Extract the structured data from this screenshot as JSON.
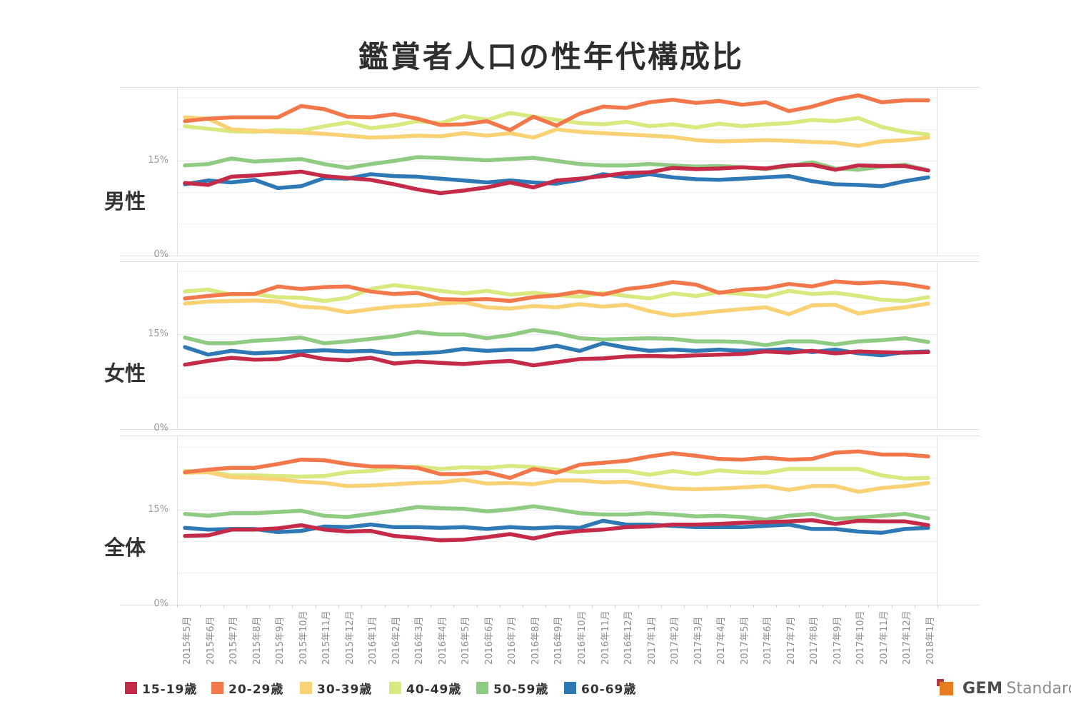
{
  "title": "鑑賞者人口の性年代構成比",
  "panels": [
    {
      "label": "男性"
    },
    {
      "label": "女性"
    },
    {
      "label": "全体"
    }
  ],
  "y_axis": {
    "tick_labels": [
      "0%",
      "15%"
    ]
  },
  "legend": {
    "items": [
      {
        "label": "15-19歳",
        "color": "#c62a49"
      },
      {
        "label": "20-29歳",
        "color": "#f2774b"
      },
      {
        "label": "30-39歳",
        "color": "#f9d276"
      },
      {
        "label": "40-49歳",
        "color": "#d9e97f"
      },
      {
        "label": "50-59歳",
        "color": "#8fcb82"
      },
      {
        "label": "60-69歳",
        "color": "#2e79b5"
      }
    ]
  },
  "logo": {
    "text_bold": "GEM",
    "text_light": "Standard",
    "orange": "#e87c21",
    "dark_red": "#b23a46"
  },
  "chart_data": {
    "type": "line",
    "grid": "horizontal, 5% steps",
    "legend_position": "bottom",
    "y_ticks_shown": [
      "0%",
      "15%"
    ],
    "ylim_per_panel": [
      0,
      26.7
    ],
    "categories": [
      "2015年5月",
      "2015年6月",
      "2015年7月",
      "2015年8月",
      "2015年9月",
      "2015年10月",
      "2015年11月",
      "2015年12月",
      "2016年1月",
      "2016年2月",
      "2016年3月",
      "2016年4月",
      "2016年5月",
      "2016年6月",
      "2016年7月",
      "2016年8月",
      "2016年9月",
      "2016年10月",
      "2016年11月",
      "2016年12月",
      "2017年1月",
      "2017年2月",
      "2017年3月",
      "2017年4月",
      "2017年5月",
      "2017年6月",
      "2017年7月",
      "2017年8月",
      "2017年9月",
      "2017年10月",
      "2017年11月",
      "2017年12月",
      "2018年1月"
    ],
    "panels": [
      {
        "name": "男性",
        "series": [
          {
            "name": "15-19歳",
            "color": "#c62a49",
            "values": [
              11.5,
              11.2,
              12.5,
              12.7,
              13.0,
              13.3,
              12.6,
              12.3,
              12.0,
              11.3,
              10.5,
              9.9,
              10.3,
              10.8,
              11.6,
              10.8,
              11.9,
              12.2,
              12.6,
              13.1,
              13.2,
              13.9,
              13.7,
              13.8,
              14.0,
              13.8,
              14.3,
              14.4,
              13.6,
              14.3,
              14.2,
              14.2,
              13.5
            ]
          },
          {
            "name": "20-29歳",
            "color": "#f2774b",
            "values": [
              21.3,
              21.7,
              21.9,
              21.9,
              21.9,
              23.7,
              23.2,
              22.0,
              21.9,
              22.4,
              21.7,
              20.7,
              20.8,
              21.3,
              19.9,
              22.0,
              20.6,
              22.5,
              23.6,
              23.4,
              24.3,
              24.7,
              24.2,
              24.5,
              23.9,
              24.3,
              22.9,
              23.6,
              24.7,
              25.4,
              24.3,
              24.6,
              24.6
            ]
          },
          {
            "name": "30-39歳",
            "color": "#f9d276",
            "values": [
              21.9,
              21.7,
              20.0,
              19.8,
              19.6,
              19.5,
              19.3,
              19.0,
              18.7,
              18.8,
              19.0,
              18.9,
              19.4,
              19.0,
              19.4,
              18.7,
              20.0,
              19.6,
              19.4,
              19.2,
              19.0,
              18.8,
              18.3,
              18.1,
              18.2,
              18.3,
              18.2,
              18.0,
              17.9,
              17.4,
              18.1,
              18.3,
              18.7
            ]
          },
          {
            "name": "40-49歳",
            "color": "#d9e97f",
            "values": [
              20.5,
              20.1,
              19.7,
              19.6,
              19.9,
              19.8,
              20.5,
              21.1,
              20.2,
              20.6,
              21.3,
              21.0,
              22.1,
              21.5,
              22.6,
              22.0,
              21.5,
              21.0,
              20.8,
              21.2,
              20.5,
              20.8,
              20.3,
              20.9,
              20.5,
              20.8,
              21.0,
              21.5,
              21.3,
              21.8,
              20.4,
              19.6,
              19.2
            ]
          },
          {
            "name": "50-59歳",
            "color": "#8fcb82",
            "values": [
              14.3,
              14.5,
              15.4,
              14.9,
              15.1,
              15.3,
              14.5,
              13.9,
              14.5,
              15.0,
              15.6,
              15.5,
              15.3,
              15.1,
              15.3,
              15.5,
              15.0,
              14.5,
              14.3,
              14.3,
              14.5,
              14.3,
              14.1,
              14.2,
              14.0,
              13.7,
              14.2,
              14.8,
              13.8,
              13.6,
              14.1,
              14.4,
              13.5
            ]
          },
          {
            "name": "60-69歳",
            "color": "#2e79b5",
            "values": [
              11.3,
              11.9,
              11.6,
              12.0,
              10.7,
              11.0,
              12.3,
              12.2,
              12.9,
              12.6,
              12.5,
              12.2,
              11.9,
              11.6,
              11.9,
              11.6,
              11.4,
              12.0,
              12.9,
              12.4,
              12.9,
              12.4,
              12.1,
              12.0,
              12.2,
              12.4,
              12.6,
              11.8,
              11.3,
              11.2,
              11.0,
              11.8,
              12.4
            ]
          }
        ]
      },
      {
        "name": "女性",
        "series": [
          {
            "name": "15-19歳",
            "color": "#c62a49",
            "values": [
              10.2,
              10.8,
              11.3,
              11.0,
              11.1,
              11.8,
              11.1,
              10.9,
              11.3,
              10.4,
              10.7,
              10.5,
              10.3,
              10.6,
              10.8,
              10.1,
              10.6,
              11.1,
              11.2,
              11.5,
              11.6,
              11.5,
              11.7,
              11.8,
              11.9,
              12.3,
              12.1,
              12.4,
              12.0,
              12.3,
              12.2,
              12.1,
              12.2
            ]
          },
          {
            "name": "20-29歳",
            "color": "#f2774b",
            "values": [
              20.7,
              21.1,
              21.4,
              21.4,
              22.6,
              22.2,
              22.5,
              22.6,
              21.8,
              21.4,
              21.6,
              20.6,
              20.5,
              20.6,
              20.3,
              20.9,
              21.2,
              21.8,
              21.3,
              22.2,
              22.6,
              23.3,
              22.9,
              21.6,
              22.1,
              22.3,
              23.0,
              22.6,
              23.4,
              23.1,
              23.3,
              23.0,
              22.4
            ]
          },
          {
            "name": "30-39歳",
            "color": "#f9d276",
            "values": [
              19.9,
              20.2,
              20.3,
              20.4,
              20.2,
              19.4,
              19.2,
              18.5,
              19.0,
              19.4,
              19.6,
              19.9,
              20.1,
              19.3,
              19.1,
              19.5,
              19.3,
              19.8,
              19.4,
              19.7,
              18.7,
              18.0,
              18.3,
              18.7,
              19.0,
              19.3,
              18.2,
              19.6,
              19.7,
              18.3,
              18.9,
              19.3,
              19.9
            ]
          },
          {
            "name": "40-49歳",
            "color": "#d9e97f",
            "values": [
              21.8,
              22.1,
              21.3,
              21.4,
              20.9,
              20.8,
              20.3,
              20.8,
              22.2,
              22.8,
              22.4,
              21.9,
              21.5,
              21.9,
              21.3,
              21.6,
              21.2,
              21.0,
              21.6,
              21.1,
              20.7,
              21.5,
              21.1,
              21.7,
              21.4,
              21.0,
              21.9,
              21.4,
              21.6,
              21.1,
              20.5,
              20.3,
              20.9
            ]
          },
          {
            "name": "50-59歳",
            "color": "#8fcb82",
            "values": [
              14.5,
              13.6,
              13.6,
              14.0,
              14.2,
              14.5,
              13.6,
              13.9,
              14.3,
              14.7,
              15.4,
              15.0,
              15.0,
              14.4,
              14.9,
              15.7,
              15.2,
              14.4,
              14.2,
              14.3,
              14.4,
              14.3,
              13.9,
              13.9,
              13.8,
              13.3,
              13.9,
              13.9,
              13.4,
              13.9,
              14.1,
              14.4,
              13.8
            ]
          },
          {
            "name": "60-69歳",
            "color": "#2e79b5",
            "values": [
              13.0,
              11.8,
              12.4,
              12.0,
              12.2,
              12.3,
              12.5,
              12.3,
              12.4,
              11.9,
              12.0,
              12.2,
              12.7,
              12.4,
              12.6,
              12.6,
              13.2,
              12.4,
              13.6,
              12.9,
              12.4,
              12.6,
              12.4,
              12.6,
              12.4,
              12.5,
              12.7,
              12.2,
              12.6,
              12.0,
              11.7,
              12.2,
              12.3
            ]
          }
        ]
      },
      {
        "name": "全体",
        "series": [
          {
            "name": "15-19歳",
            "color": "#c62a49",
            "values": [
              10.9,
              11.0,
              11.9,
              11.9,
              12.1,
              12.6,
              11.9,
              11.6,
              11.7,
              10.9,
              10.6,
              10.2,
              10.3,
              10.7,
              11.2,
              10.5,
              11.3,
              11.7,
              11.9,
              12.3,
              12.4,
              12.7,
              12.7,
              12.8,
              13.0,
              13.1,
              13.2,
              13.4,
              12.8,
              13.3,
              13.2,
              13.2,
              12.6
            ]
          },
          {
            "name": "20-29歳",
            "color": "#f2774b",
            "values": [
              21.0,
              21.4,
              21.7,
              21.7,
              22.3,
              23.0,
              22.9,
              22.3,
              21.9,
              21.9,
              21.7,
              20.7,
              20.7,
              21.0,
              20.1,
              21.5,
              20.9,
              22.2,
              22.5,
              22.8,
              23.5,
              24.0,
              23.6,
              23.1,
              23.0,
              23.3,
              23.0,
              23.1,
              24.1,
              24.3,
              23.8,
              23.8,
              23.5
            ]
          },
          {
            "name": "30-39歳",
            "color": "#f9d276",
            "values": [
              20.9,
              21.0,
              20.2,
              20.1,
              19.9,
              19.5,
              19.3,
              18.8,
              18.9,
              19.1,
              19.3,
              19.4,
              19.8,
              19.2,
              19.3,
              19.1,
              19.7,
              19.7,
              19.4,
              19.5,
              18.9,
              18.4,
              18.3,
              18.4,
              18.6,
              18.8,
              18.2,
              18.8,
              18.8,
              17.9,
              18.5,
              18.8,
              19.3
            ]
          },
          {
            "name": "40-49歳",
            "color": "#d9e97f",
            "values": [
              21.2,
              21.1,
              20.5,
              20.5,
              20.4,
              20.3,
              20.4,
              21.0,
              21.2,
              21.7,
              21.9,
              21.5,
              21.8,
              21.7,
              22.0,
              21.8,
              21.4,
              21.0,
              21.2,
              21.2,
              20.6,
              21.2,
              20.7,
              21.3,
              21.0,
              20.9,
              21.5,
              21.5,
              21.5,
              21.5,
              20.5,
              20.0,
              20.1
            ]
          },
          {
            "name": "50-59歳",
            "color": "#8fcb82",
            "values": [
              14.4,
              14.1,
              14.5,
              14.5,
              14.7,
              14.9,
              14.1,
              13.9,
              14.4,
              14.9,
              15.5,
              15.3,
              15.2,
              14.8,
              15.1,
              15.6,
              15.1,
              14.5,
              14.3,
              14.3,
              14.5,
              14.3,
              14.0,
              14.1,
              13.9,
              13.5,
              14.1,
              14.4,
              13.6,
              13.8,
              14.1,
              14.4,
              13.7
            ]
          },
          {
            "name": "60-69歳",
            "color": "#2e79b5",
            "values": [
              12.2,
              11.9,
              12.0,
              12.0,
              11.5,
              11.7,
              12.4,
              12.3,
              12.7,
              12.3,
              12.3,
              12.2,
              12.3,
              12.0,
              12.3,
              12.1,
              12.3,
              12.2,
              13.3,
              12.7,
              12.7,
              12.5,
              12.3,
              12.3,
              12.3,
              12.5,
              12.7,
              12.0,
              12.0,
              11.6,
              11.4,
              12.0,
              12.2
            ]
          }
        ]
      }
    ]
  }
}
